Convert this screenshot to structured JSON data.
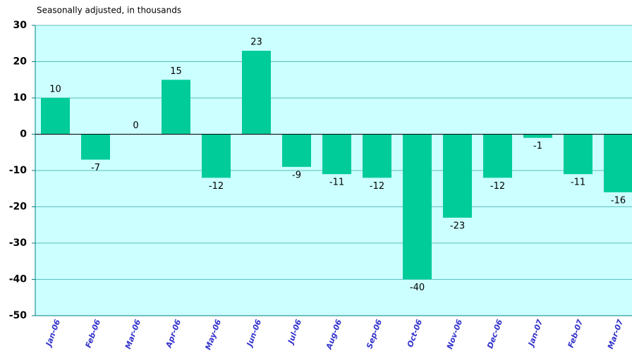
{
  "chart_data": {
    "type": "bar",
    "subtitle": "Seasonally adjusted, in thousands",
    "categories": [
      "Jan-06",
      "Feb-06",
      "Mar-06",
      "Apr-06",
      "May-06",
      "Jun-06",
      "Jul-06",
      "Aug-06",
      "Sep-06",
      "Oct-06",
      "Nov-06",
      "Dec-06",
      "Jan-07",
      "Feb-07",
      "Mar-07"
    ],
    "values": [
      10,
      -7,
      0,
      15,
      -12,
      23,
      -9,
      -11,
      -12,
      -40,
      -23,
      -12,
      -1,
      -11,
      -16
    ],
    "color": "#00cc99",
    "ylim": [
      -50,
      30
    ],
    "yticks": [
      -50,
      -40,
      -30,
      -20,
      -10,
      0,
      10,
      20,
      30
    ],
    "grid": true
  }
}
